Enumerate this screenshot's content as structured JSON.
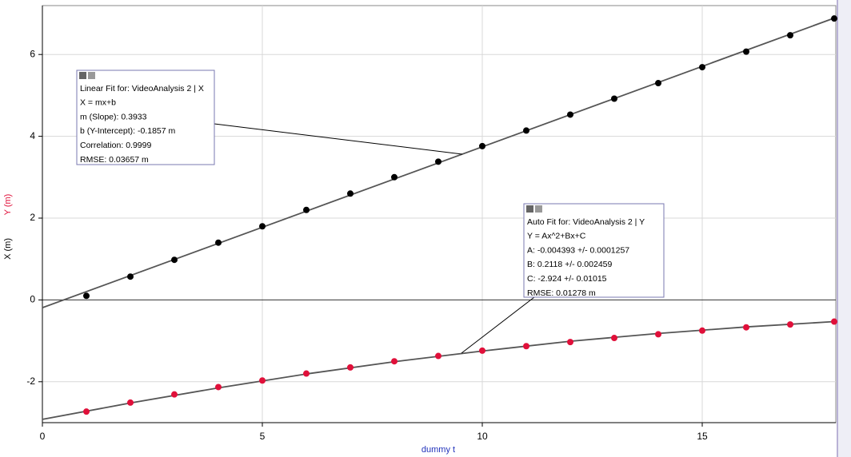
{
  "chart_data": {
    "type": "scatter",
    "xlabel": "dummy t",
    "x": [
      1,
      2,
      3,
      4,
      5,
      6,
      7,
      8,
      9,
      10,
      11,
      12,
      13,
      14,
      15,
      16,
      17,
      18
    ],
    "series": [
      {
        "name": "X (m)",
        "color": "#000000",
        "values": [
          0.1,
          0.57,
          0.98,
          1.4,
          1.8,
          2.2,
          2.6,
          3.0,
          3.38,
          3.76,
          4.14,
          4.53,
          4.92,
          5.3,
          5.69,
          6.07,
          6.47,
          6.88
        ]
      },
      {
        "name": "Y (m)",
        "color": "#e0103a",
        "values": [
          -2.73,
          -2.51,
          -2.31,
          -2.13,
          -1.97,
          -1.8,
          -1.65,
          -1.5,
          -1.37,
          -1.24,
          -1.13,
          -1.03,
          -0.93,
          -0.84,
          -0.75,
          -0.67,
          -0.6,
          -0.53
        ]
      }
    ],
    "fits": [
      {
        "color": "#555555",
        "x": [
          0,
          18
        ],
        "values": [
          -0.19,
          6.89
        ]
      },
      {
        "color": "#555555",
        "x": [
          0,
          2,
          4,
          6,
          8,
          10,
          12,
          14,
          16,
          18
        ],
        "values": [
          -2.92,
          -2.52,
          -2.15,
          -1.81,
          -1.51,
          -1.25,
          -1.01,
          -0.82,
          -0.66,
          -0.53
        ]
      }
    ],
    "xlim": [
      0,
      18
    ],
    "xticks": [
      0,
      5,
      10,
      15
    ],
    "ylim": [
      -3,
      7
    ],
    "yticks": [
      -2,
      0,
      2,
      4,
      6
    ],
    "grid": true,
    "annotations": [
      {
        "lines": [
          "Linear Fit for: VideoAnalysis 2 | X",
          "X = mx+b",
          "m (Slope): 0.3933",
          "b (Y-Intercept): -0.1857 m",
          "Correlation: 0.9999",
          "RMSE: 0.03657 m"
        ]
      },
      {
        "lines": [
          "Auto Fit for: VideoAnalysis 2 | Y",
          "Y = Ax^2+Bx+C",
          "A: -0.004393 +/- 0.0001257",
          "B: 0.2118 +/- 0.002459",
          "C: -2.924 +/- 0.01015",
          "RMSE: 0.01278 m"
        ]
      }
    ]
  }
}
